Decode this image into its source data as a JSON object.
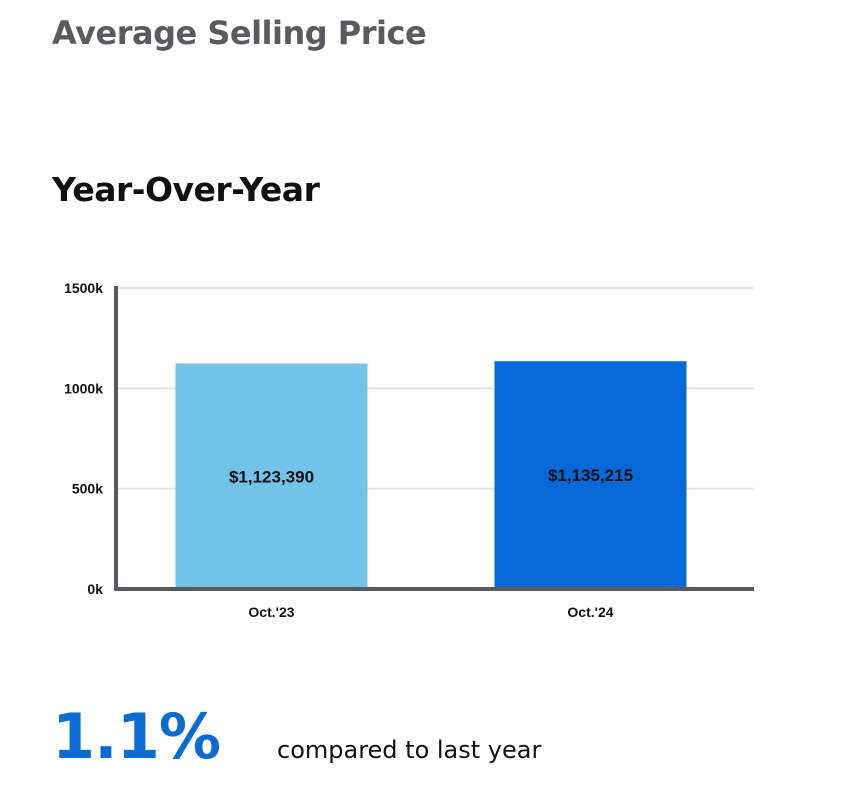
{
  "header": {
    "title": "Average Selling Price",
    "subtitle": "Year-Over-Year"
  },
  "chart_data": {
    "type": "bar",
    "categories": [
      "Oct.'23",
      "Oct.'24"
    ],
    "values": [
      1123390,
      1135215
    ],
    "value_labels": [
      "$1,123,390",
      "$1,135,215"
    ],
    "bar_colors": [
      "#72c3e8",
      "#0469d6"
    ],
    "yticks": [
      0,
      500,
      1000,
      1500
    ],
    "ytick_labels": [
      "0k",
      "500k",
      "1000k",
      "1500k"
    ],
    "ylim": [
      0,
      1500000
    ],
    "grid": true,
    "title": "",
    "xlabel": "",
    "ylabel": ""
  },
  "summary": {
    "change": "1.1%",
    "text": "compared to last year"
  },
  "colors": {
    "title": "#5b5b5f",
    "accent": "#0a6bd3",
    "axis": "#5a5a5e",
    "grid": "#e2e2e2"
  }
}
